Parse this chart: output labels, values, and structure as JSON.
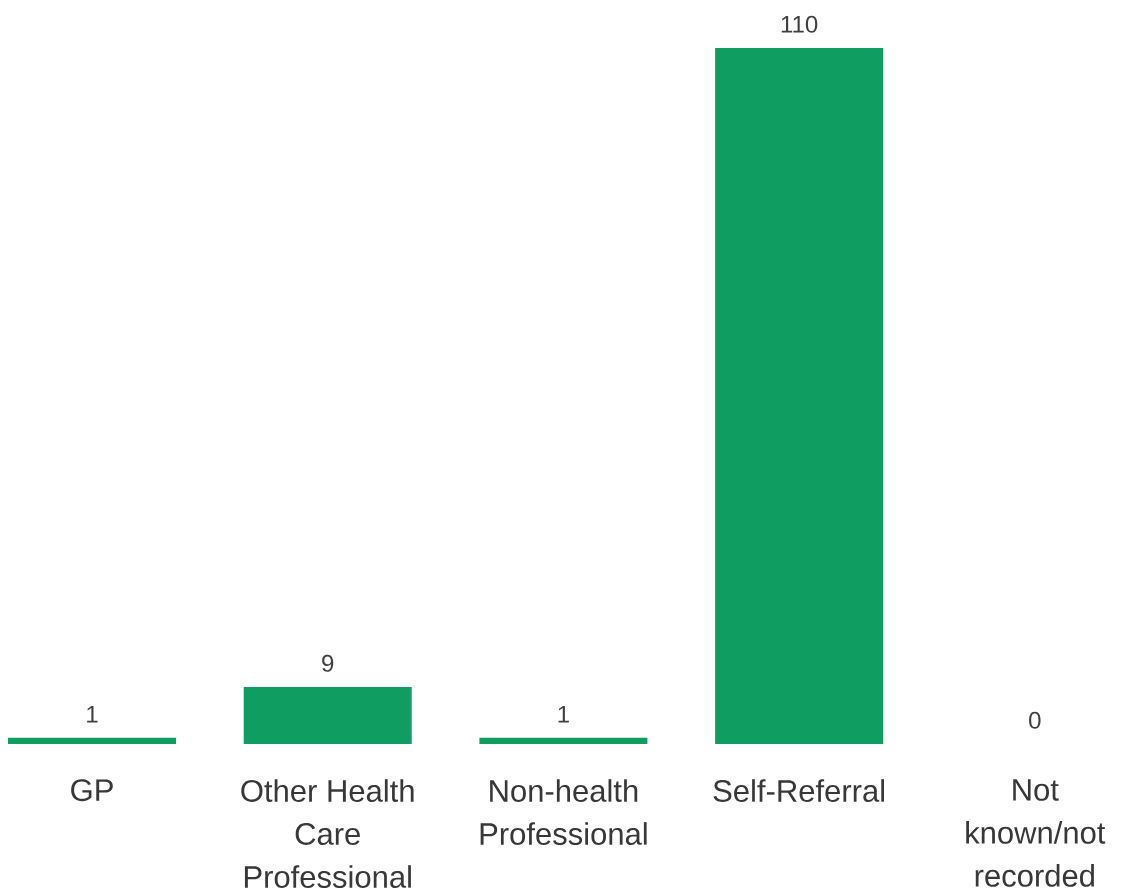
{
  "chart_data": {
    "type": "bar",
    "categories": [
      "GP",
      "Other Health Care Professional",
      "Non-health Professional",
      "Self-Referral",
      "Not known/not recorded"
    ],
    "values": [
      1,
      9,
      1,
      110,
      0
    ],
    "color": "#0f9d62",
    "data_labels": true
  }
}
